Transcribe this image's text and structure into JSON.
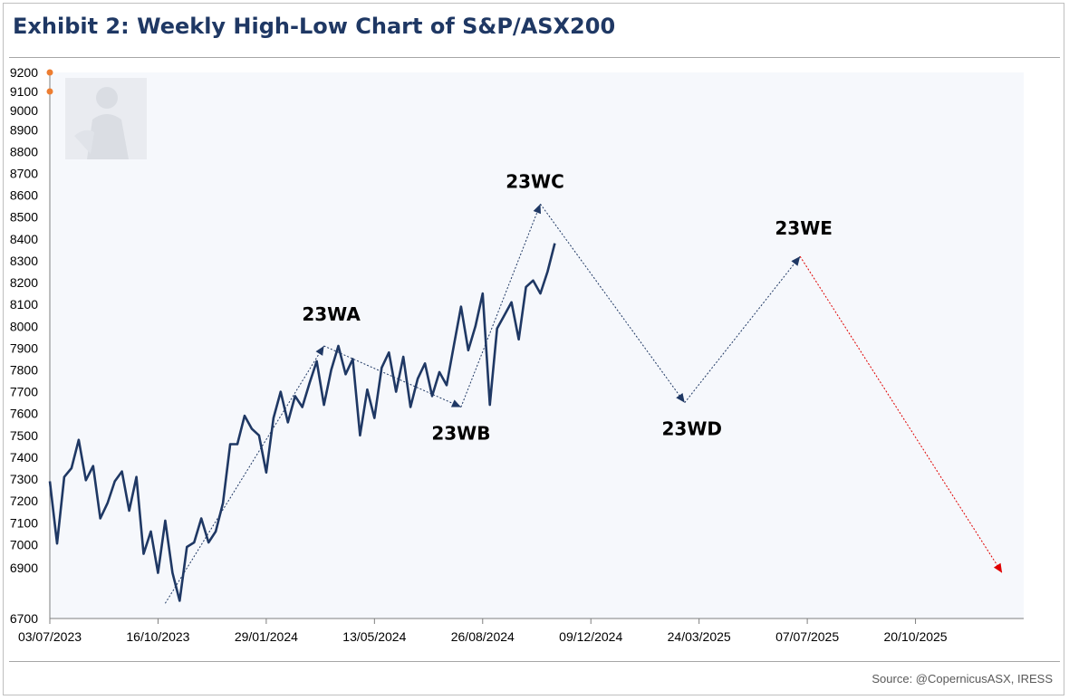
{
  "header": {
    "title": "Exhibit 2: Weekly High-Low Chart of S&P/ASX200"
  },
  "footer": {
    "source": "Source: @CopernicusASX, IRESS"
  },
  "colors": {
    "series": "#1f3864",
    "projection": "#1f3864",
    "final_projection": "#e00000",
    "marker": "#ed7d31",
    "plot_bg": "#f6f8fc"
  },
  "chart_data": {
    "type": "line",
    "title": "Exhibit 2: Weekly High-Low Chart of S&P/ASX200",
    "xlabel": "",
    "ylabel": "",
    "x_start": "03/07/2023",
    "x_end": "02/02/2026",
    "y_ticks": [
      6700,
      6900,
      7000,
      7100,
      7200,
      7300,
      7400,
      7500,
      7600,
      7700,
      7800,
      7900,
      8000,
      8100,
      8200,
      8300,
      8400,
      8500,
      8600,
      8700,
      8800,
      8900,
      9000,
      9100,
      9200
    ],
    "x_ticks": [
      "03/07/2023",
      "16/10/2023",
      "29/01/2024",
      "13/05/2024",
      "26/08/2024",
      "09/12/2024",
      "24/03/2025",
      "07/07/2025",
      "20/10/2025"
    ],
    "grid": false,
    "legend": "none",
    "markers": [
      {
        "y": 9200
      },
      {
        "y": 9100
      }
    ],
    "series": [
      {
        "x": [
          "03/07/2023",
          "10/07/2023",
          "17/07/2023",
          "24/07/2023",
          "31/07/2023",
          "07/08/2023",
          "14/08/2023",
          "21/08/2023",
          "28/08/2023",
          "04/09/2023",
          "11/09/2023",
          "18/09/2023",
          "25/09/2023",
          "02/10/2023",
          "09/10/2023",
          "16/10/2023",
          "23/10/2023",
          "30/10/2023",
          "06/11/2023",
          "13/11/2023",
          "20/11/2023",
          "27/11/2023",
          "04/12/2023",
          "11/12/2023",
          "18/12/2023",
          "25/12/2023",
          "01/01/2024",
          "08/01/2024",
          "15/01/2024",
          "22/01/2024",
          "29/01/2024",
          "05/02/2024",
          "12/02/2024",
          "19/02/2024",
          "26/02/2024",
          "04/03/2024",
          "11/03/2024",
          "18/03/2024",
          "25/03/2024",
          "01/04/2024",
          "08/04/2024",
          "15/04/2024",
          "22/04/2024",
          "29/04/2024",
          "06/05/2024",
          "13/05/2024",
          "20/05/2024",
          "27/05/2024",
          "03/06/2024",
          "10/06/2024",
          "17/06/2024",
          "24/06/2024",
          "01/07/2024",
          "08/07/2024",
          "15/07/2024",
          "22/07/2024",
          "29/07/2024",
          "05/08/2024",
          "12/08/2024",
          "19/08/2024",
          "26/08/2024",
          "02/09/2024",
          "09/09/2024",
          "16/09/2024",
          "23/09/2024",
          "30/09/2024",
          "07/10/2024",
          "14/10/2024",
          "21/10/2024",
          "28/10/2024",
          "04/11/2024"
        ],
        "values": [
          7290,
          7005,
          7310,
          7350,
          7480,
          7295,
          7360,
          7120,
          7190,
          7290,
          7335,
          7155,
          7310,
          6960,
          7060,
          6880,
          7110,
          6880,
          6770,
          6990,
          7010,
          7120,
          7010,
          7060,
          7190,
          7460,
          7460,
          7590,
          7530,
          7500,
          7330,
          7580,
          7700,
          7560,
          7680,
          7630,
          7740,
          7840,
          7640,
          7800,
          7910,
          7780,
          7850,
          7500,
          7710,
          7580,
          7810,
          7880,
          7700,
          7860,
          7630,
          7760,
          7830,
          7680,
          7790,
          7730,
          7910,
          8090,
          7890,
          8000,
          8150,
          7640,
          7990,
          8050,
          8110,
          7940,
          8180,
          8210,
          8150,
          8250,
          8380
        ]
      }
    ],
    "projection_path": [
      {
        "label": "",
        "x": "23/10/2023",
        "y": 6760
      },
      {
        "label": "23WA",
        "x": "25/03/2024",
        "y": 7910
      },
      {
        "label": "23WB",
        "x": "05/08/2024",
        "y": 7630
      },
      {
        "label": "23WC",
        "x": "21/10/2024",
        "y": 8560
      },
      {
        "label": "23WD",
        "x": "10/03/2025",
        "y": 7650
      },
      {
        "label": "23WE",
        "x": "30/06/2025",
        "y": 8320
      }
    ],
    "final_projection": [
      {
        "x": "30/06/2025",
        "y": 8320
      },
      {
        "x": "12/01/2026",
        "y": 6880
      }
    ]
  }
}
